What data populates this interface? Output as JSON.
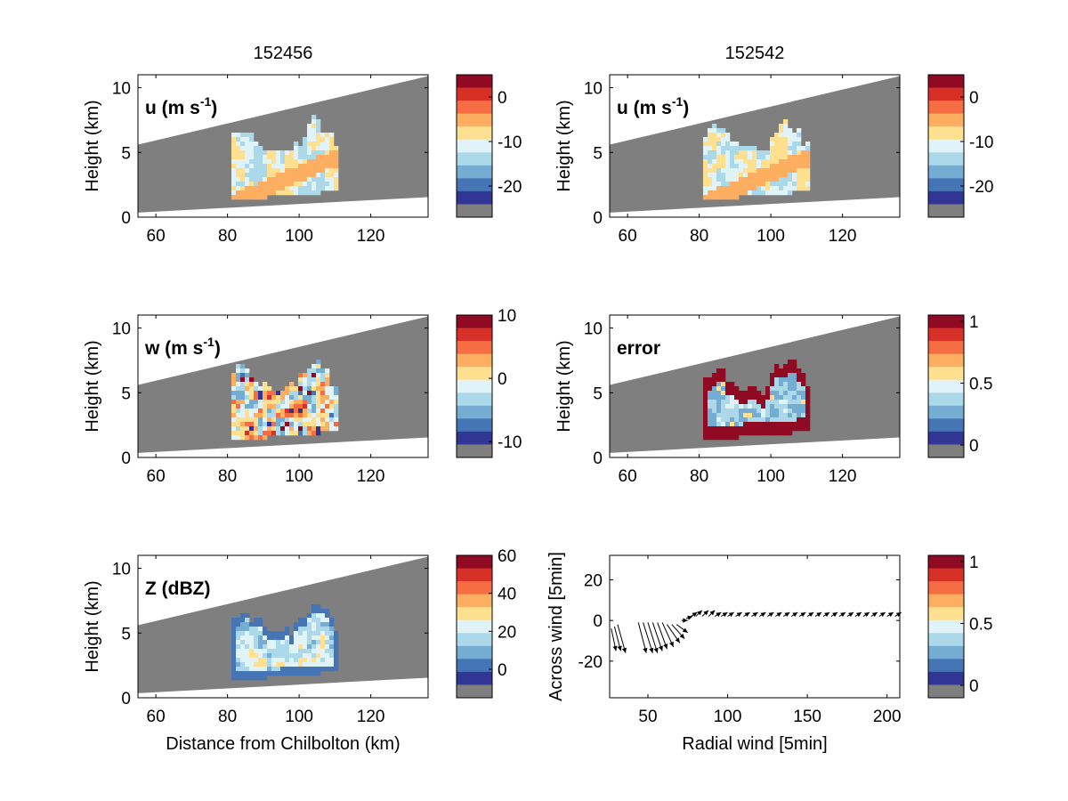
{
  "figure": {
    "col_titles": [
      "152456",
      "152542"
    ]
  },
  "palette": {
    "shades": [
      "#8f0a22",
      "#d73027",
      "#f46d43",
      "#fdae61",
      "#fee090",
      "#e0f3f8",
      "#abd9e9",
      "#74add1",
      "#4575b4",
      "#313695",
      "#7f7f7f"
    ],
    "radar_gray": "#7f7f7f",
    "quiver": "#000000"
  },
  "chart_data": [
    {
      "type": "heatmap",
      "panel": "u-152456",
      "annotation": "u (m s",
      "annotation_sup": "-1",
      "annotation_tail": ")",
      "ylabel": "Height (km)",
      "xlabel": "",
      "xlim": [
        55,
        136
      ],
      "ylim": [
        0,
        11
      ],
      "xticks": [
        60,
        80,
        100,
        120
      ],
      "yticks": [
        0,
        5,
        10
      ],
      "colorbar": {
        "ticks": [
          "0",
          "-10",
          "-20"
        ],
        "tick_values": [
          0,
          -10,
          -20
        ],
        "range": [
          -27,
          5
        ]
      }
    },
    {
      "type": "heatmap",
      "panel": "u-152542",
      "annotation": "u (m s",
      "annotation_sup": "-1",
      "annotation_tail": ")",
      "ylabel": "Height (km)",
      "xlabel": "",
      "xlim": [
        55,
        136
      ],
      "ylim": [
        0,
        11
      ],
      "xticks": [
        60,
        80,
        100,
        120
      ],
      "yticks": [
        0,
        5,
        10
      ],
      "colorbar": {
        "ticks": [
          "0",
          "-10",
          "-20"
        ],
        "tick_values": [
          0,
          -10,
          -20
        ],
        "range": [
          -27,
          5
        ]
      }
    },
    {
      "type": "heatmap",
      "panel": "w-152456",
      "annotation": "w (m s",
      "annotation_sup": "-1",
      "annotation_tail": ")",
      "ylabel": "Height (km)",
      "xlabel": "",
      "xlim": [
        55,
        136
      ],
      "ylim": [
        0,
        11
      ],
      "xticks": [
        60,
        80,
        100,
        120
      ],
      "yticks": [
        0,
        5,
        10
      ],
      "colorbar": {
        "ticks": [
          "10",
          "0",
          "-10"
        ],
        "tick_values": [
          10,
          0,
          -10
        ],
        "range": [
          -12.5,
          10
        ]
      }
    },
    {
      "type": "heatmap",
      "panel": "error-152542",
      "annotation": "error",
      "annotation_sup": "",
      "annotation_tail": "",
      "ylabel": "Height (km)",
      "xlabel": "",
      "xlim": [
        55,
        136
      ],
      "ylim": [
        0,
        11
      ],
      "xticks": [
        60,
        80,
        100,
        120
      ],
      "yticks": [
        0,
        5,
        10
      ],
      "colorbar": {
        "ticks": [
          "1",
          "0.5",
          "0"
        ],
        "tick_values": [
          1,
          0.5,
          0
        ],
        "range": [
          -0.1,
          1.05
        ]
      }
    },
    {
      "type": "heatmap",
      "panel": "Z-152456",
      "annotation": "Z (dBZ)",
      "annotation_sup": "",
      "annotation_tail": "",
      "ylabel": "Height (km)",
      "xlabel": "Distance from Chilbolton (km)",
      "xlim": [
        55,
        136
      ],
      "ylim": [
        0,
        11
      ],
      "xticks": [
        60,
        80,
        100,
        120
      ],
      "yticks": [
        0,
        5,
        10
      ],
      "colorbar": {
        "ticks": [
          "60",
          "40",
          "20",
          "0"
        ],
        "tick_values": [
          60,
          40,
          20,
          0
        ],
        "range": [
          -15,
          60
        ]
      }
    },
    {
      "type": "scatter",
      "panel": "quiver",
      "subtype": "quiver",
      "annotation": "",
      "xlabel": "Radial wind [5min]",
      "ylabel": "Across wind [5min]",
      "xlim": [
        26,
        208
      ],
      "ylim": [
        -38,
        32
      ],
      "xticks": [
        50,
        100,
        150,
        200
      ],
      "yticks": [
        -20,
        0,
        20
      ],
      "colorbar": {
        "ticks": [
          "1",
          "0.5",
          "0"
        ],
        "tick_values": [
          1,
          0.5,
          0
        ],
        "range": [
          -0.1,
          1.05
        ]
      },
      "vectors": [
        {
          "x": 27,
          "y": -4,
          "u": 3,
          "v": -11
        },
        {
          "x": 29,
          "y": -3,
          "u": 4,
          "v": -12
        },
        {
          "x": 31,
          "y": -2,
          "u": 5,
          "v": -14
        },
        {
          "x": 44,
          "y": -1,
          "u": 5,
          "v": -15
        },
        {
          "x": 47,
          "y": -1,
          "u": 6,
          "v": -15
        },
        {
          "x": 50,
          "y": -1,
          "u": 6,
          "v": -15
        },
        {
          "x": 53,
          "y": -1,
          "u": 6,
          "v": -14
        },
        {
          "x": 56,
          "y": -1,
          "u": 6,
          "v": -13
        },
        {
          "x": 59,
          "y": -1,
          "u": 7,
          "v": -12
        },
        {
          "x": 62,
          "y": -2,
          "u": 8,
          "v": -9
        },
        {
          "x": 65,
          "y": -2,
          "u": 8,
          "v": -7
        },
        {
          "x": 68,
          "y": -2,
          "u": 7,
          "v": -4
        },
        {
          "x": 71,
          "y": 0,
          "u": 4,
          "v": 0
        },
        {
          "x": 74,
          "y": 1,
          "u": 4,
          "v": 1
        },
        {
          "x": 77,
          "y": 2,
          "u": 4,
          "v": 2
        },
        {
          "x": 80,
          "y": 2,
          "u": 4,
          "v": 3
        },
        {
          "x": 84,
          "y": 2,
          "u": 4,
          "v": 3
        },
        {
          "x": 88,
          "y": 2,
          "u": 4,
          "v": 3
        },
        {
          "x": 92,
          "y": 2,
          "u": 4,
          "v": 2
        },
        {
          "x": 96,
          "y": 2,
          "u": 4,
          "v": 2
        },
        {
          "x": 100,
          "y": 2,
          "u": 4,
          "v": 2
        },
        {
          "x": 105,
          "y": 2,
          "u": 4,
          "v": 2
        },
        {
          "x": 110,
          "y": 2,
          "u": 4,
          "v": 2
        },
        {
          "x": 115,
          "y": 2,
          "u": 4,
          "v": 2
        },
        {
          "x": 120,
          "y": 2,
          "u": 4,
          "v": 2
        },
        {
          "x": 125,
          "y": 2,
          "u": 4,
          "v": 2
        },
        {
          "x": 130,
          "y": 2,
          "u": 4,
          "v": 2
        },
        {
          "x": 135,
          "y": 2,
          "u": 4,
          "v": 2
        },
        {
          "x": 140,
          "y": 2,
          "u": 4,
          "v": 2
        },
        {
          "x": 145,
          "y": 2,
          "u": 4,
          "v": 2
        },
        {
          "x": 150,
          "y": 2,
          "u": 4,
          "v": 2
        },
        {
          "x": 155,
          "y": 2,
          "u": 4,
          "v": 2
        },
        {
          "x": 160,
          "y": 2,
          "u": 4,
          "v": 2
        },
        {
          "x": 165,
          "y": 2,
          "u": 4,
          "v": 2
        },
        {
          "x": 170,
          "y": 2,
          "u": 4,
          "v": 2
        },
        {
          "x": 175,
          "y": 2,
          "u": 4,
          "v": 2
        },
        {
          "x": 180,
          "y": 2,
          "u": 4,
          "v": 2
        },
        {
          "x": 185,
          "y": 2,
          "u": 4,
          "v": 2
        },
        {
          "x": 190,
          "y": 2,
          "u": 4,
          "v": 2
        },
        {
          "x": 195,
          "y": 2,
          "u": 4,
          "v": 2
        },
        {
          "x": 200,
          "y": 2,
          "u": 4,
          "v": 2
        },
        {
          "x": 205,
          "y": 2,
          "u": 4,
          "v": 2
        }
      ]
    }
  ]
}
